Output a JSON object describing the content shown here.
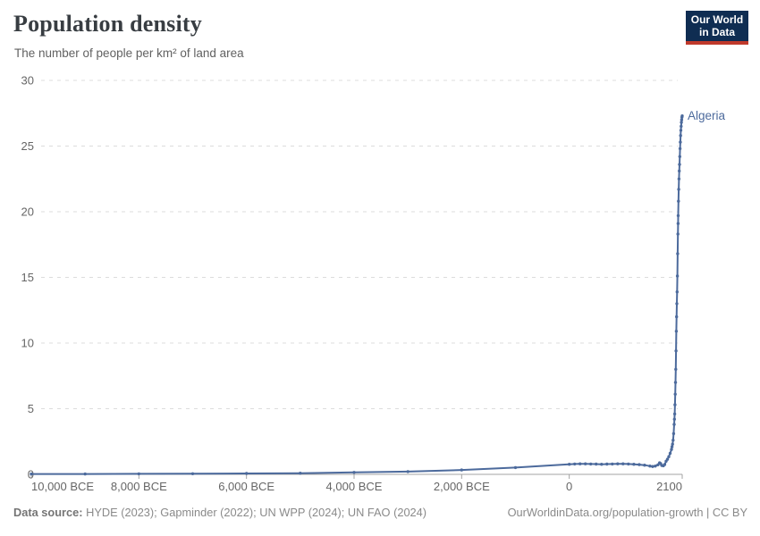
{
  "header": {
    "title": "Population density",
    "subtitle": "The number of people per km² of land area"
  },
  "logo": {
    "line1": "Our World",
    "line2": "in Data",
    "bg_color": "#0f2d52",
    "accent_color": "#c0392b"
  },
  "chart_data": {
    "type": "line",
    "title": "Population density",
    "subtitle": "The number of people per km² of land area",
    "xlabel": "",
    "ylabel": "",
    "xlim": [
      -10000,
      2100
    ],
    "ylim": [
      0,
      30
    ],
    "grid": "horizontal-dashed",
    "legend_position": "line-end-label",
    "y_ticks": [
      0,
      5,
      10,
      15,
      20,
      25,
      30
    ],
    "x_ticks": [
      {
        "year": -10000,
        "label": "10,000 BCE",
        "align": "start"
      },
      {
        "year": -8000,
        "label": "8,000 BCE",
        "align": "middle"
      },
      {
        "year": -6000,
        "label": "6,000 BCE",
        "align": "middle"
      },
      {
        "year": -4000,
        "label": "4,000 BCE",
        "align": "middle"
      },
      {
        "year": -2000,
        "label": "2,000 BCE",
        "align": "middle"
      },
      {
        "year": 0,
        "label": "0",
        "align": "middle"
      },
      {
        "year": 2100,
        "label": "2100",
        "align": "end"
      }
    ],
    "series": [
      {
        "name": "Algeria",
        "color": "#4c6a9c",
        "points": [
          [
            -10000,
            0.03
          ],
          [
            -9000,
            0.03
          ],
          [
            -8000,
            0.04
          ],
          [
            -7000,
            0.05
          ],
          [
            -6000,
            0.07
          ],
          [
            -5000,
            0.09
          ],
          [
            -4000,
            0.15
          ],
          [
            -3000,
            0.21
          ],
          [
            -2000,
            0.33
          ],
          [
            -1000,
            0.52
          ],
          [
            0,
            0.77
          ],
          [
            100,
            0.79
          ],
          [
            200,
            0.8
          ],
          [
            300,
            0.8
          ],
          [
            400,
            0.79
          ],
          [
            500,
            0.78
          ],
          [
            600,
            0.77
          ],
          [
            700,
            0.78
          ],
          [
            800,
            0.79
          ],
          [
            900,
            0.8
          ],
          [
            1000,
            0.8
          ],
          [
            1100,
            0.79
          ],
          [
            1200,
            0.77
          ],
          [
            1300,
            0.74
          ],
          [
            1400,
            0.7
          ],
          [
            1500,
            0.63
          ],
          [
            1550,
            0.6
          ],
          [
            1600,
            0.63
          ],
          [
            1650,
            0.73
          ],
          [
            1680,
            0.88
          ],
          [
            1700,
            0.82
          ],
          [
            1720,
            0.68
          ],
          [
            1750,
            0.65
          ],
          [
            1775,
            0.75
          ],
          [
            1800,
            1.0
          ],
          [
            1825,
            1.15
          ],
          [
            1850,
            1.35
          ],
          [
            1875,
            1.6
          ],
          [
            1900,
            1.9
          ],
          [
            1910,
            2.1
          ],
          [
            1920,
            2.3
          ],
          [
            1930,
            2.6
          ],
          [
            1940,
            3.1
          ],
          [
            1950,
            3.8
          ],
          [
            1955,
            4.2
          ],
          [
            1960,
            4.6
          ],
          [
            1965,
            5.3
          ],
          [
            1970,
            6.1
          ],
          [
            1975,
            7.0
          ],
          [
            1980,
            8.0
          ],
          [
            1985,
            9.4
          ],
          [
            1990,
            10.9
          ],
          [
            1995,
            12.0
          ],
          [
            2000,
            13.0
          ],
          [
            2005,
            13.9
          ],
          [
            2010,
            15.1
          ],
          [
            2015,
            16.8
          ],
          [
            2020,
            18.3
          ],
          [
            2023,
            19.1
          ],
          [
            2025,
            19.7
          ],
          [
            2030,
            20.8
          ],
          [
            2035,
            21.7
          ],
          [
            2040,
            22.5
          ],
          [
            2045,
            23.1
          ],
          [
            2050,
            23.6
          ],
          [
            2055,
            24.2
          ],
          [
            2060,
            24.8
          ],
          [
            2065,
            25.3
          ],
          [
            2070,
            25.8
          ],
          [
            2075,
            26.2
          ],
          [
            2080,
            26.5
          ],
          [
            2085,
            26.8
          ],
          [
            2090,
            27.0
          ],
          [
            2095,
            27.2
          ],
          [
            2100,
            27.3
          ]
        ]
      }
    ]
  },
  "footer": {
    "source_label": "Data source:",
    "source_text": " HYDE (2023); Gapminder (2022); UN WPP (2024); UN FAO (2024)",
    "credit": "OurWorldinData.org/population-growth | CC BY"
  }
}
